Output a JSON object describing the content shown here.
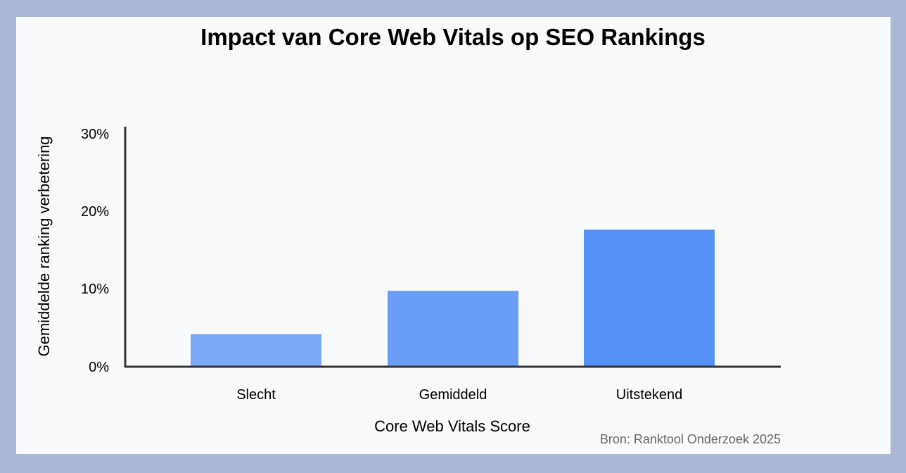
{
  "chart_data": {
    "type": "bar",
    "title": "Impact van Core Web Vitals op SEO Rankings",
    "xlabel": "Core Web Vitals Score",
    "ylabel": "Gemiddelde ranking verbetering",
    "categories": [
      "Slecht",
      "Gemiddeld",
      "Uitstekend"
    ],
    "values": [
      4.2,
      9.8,
      17.7
    ],
    "unit": "%",
    "ylim": [
      0,
      31
    ],
    "yticks": [
      0,
      10,
      20,
      30
    ],
    "ytick_labels": [
      "0%",
      "10%",
      "20%",
      "30%"
    ],
    "colors": [
      "#7aa9f7",
      "#6a9df6",
      "#5590f4"
    ],
    "grid": false,
    "legend": "none"
  },
  "source": "Bron: Ranktool Onderzoek 2025"
}
